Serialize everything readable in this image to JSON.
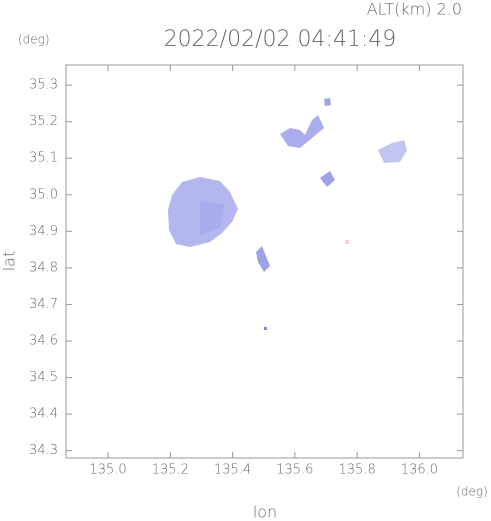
{
  "chart_data": {
    "type": "map",
    "title": "2022/02/02 04:41:49",
    "subtitle": "ALT(km) 2.0",
    "y_unit": "(deg)",
    "x_unit": "(deg)",
    "xlabel": "lon",
    "ylabel": "lat",
    "xlim": [
      134.865,
      136.14
    ],
    "xticks": [
      {
        "value": 135,
        "label": "135.0"
      },
      135.2,
      135.4,
      135.6,
      135.8,
      {
        "value": 136,
        "label": "136.0"
      }
    ],
    "ylim": [
      34.28,
      35.355
    ],
    "yticks": [
      35.3,
      35.2,
      35.1,
      {
        "value": 35,
        "label": "35.0"
      },
      34.9,
      34.8,
      34.7,
      34.6,
      34.5,
      34.4,
      34.3
    ]
  }
}
